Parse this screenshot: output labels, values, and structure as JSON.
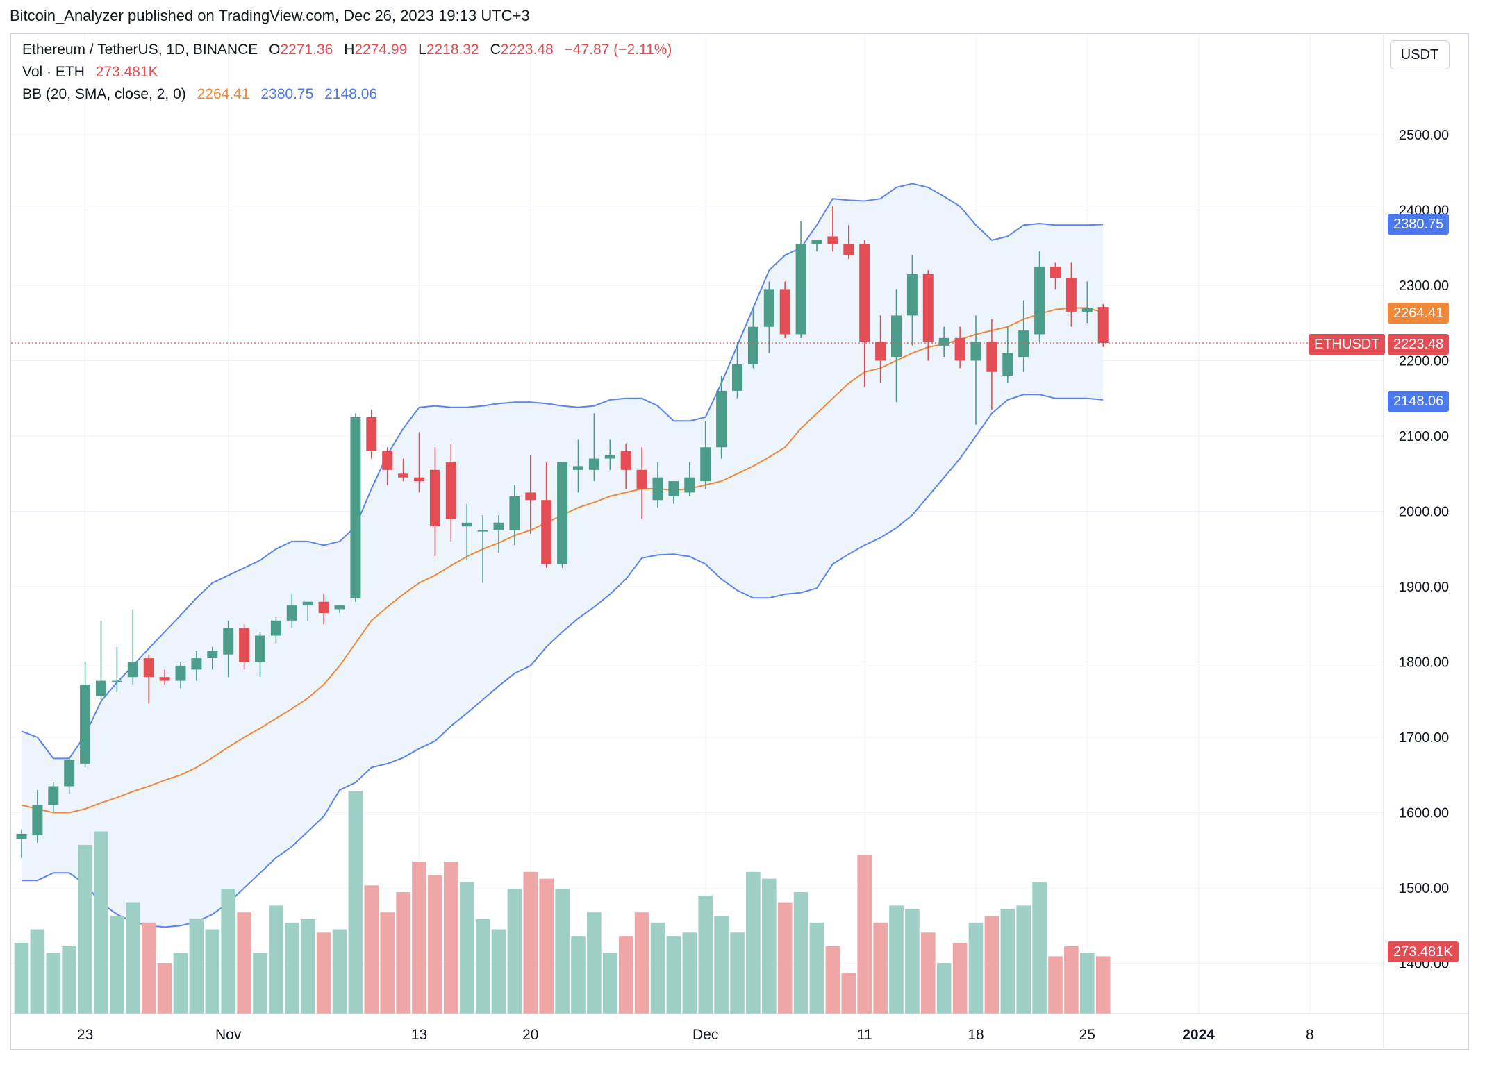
{
  "header": {
    "published": "Bitcoin_Analyzer published on TradingView.com, Dec 26, 2023 19:13 UTC+3"
  },
  "legend": {
    "symbol": "Ethereum / TetherUS, 1D, BINANCE",
    "open_label": "O",
    "open": "2271.36",
    "high_label": "H",
    "high": "2274.99",
    "low_label": "L",
    "low": "2218.32",
    "close_label": "C",
    "close": "2223.48",
    "change": "−47.87 (−2.11%)",
    "vol_label": "Vol · ETH",
    "vol_value": "273.481K",
    "bb_label": "BB (20, SMA, close, 2, 0)",
    "bb_basis": "2264.41",
    "bb_upper": "2380.75",
    "bb_lower": "2148.06"
  },
  "currency": "USDT",
  "price_tags": {
    "upper": "2380.75",
    "basis": "2264.41",
    "symbol": "ETHUSDT",
    "last": "2223.48",
    "lower": "2148.06",
    "volume": "273.481K"
  },
  "colors": {
    "up": "#4c9c8a",
    "down": "#e54d55",
    "vol_up": "#9dcfc4",
    "vol_down": "#efa6a6",
    "band": "#5b84f0",
    "basis": "#f0883a",
    "band_fill": "#eef4fc",
    "grid": "#f0f3fa"
  },
  "chart_data": {
    "type": "candlestick",
    "y_ticks": [
      "2500.00",
      "2400.00",
      "2300.00",
      "2200.00",
      "2100.00",
      "2000.00",
      "1900.00",
      "1800.00",
      "1700.00",
      "1600.00",
      "1500.00",
      "1400.00"
    ],
    "x_ticks": [
      {
        "label": "23",
        "i": 4
      },
      {
        "label": "Nov",
        "i": 13
      },
      {
        "label": "13",
        "i": 25
      },
      {
        "label": "20",
        "i": 32
      },
      {
        "label": "Dec",
        "i": 43
      },
      {
        "label": "11",
        "i": 53
      },
      {
        "label": "18",
        "i": 60
      },
      {
        "label": "25",
        "i": 67
      },
      {
        "label": "2024",
        "i": 74
      },
      {
        "label": "8",
        "i": 81
      }
    ],
    "ylim": [
      1310,
      2585
    ],
    "candles": [
      [
        1565,
        1578,
        1540,
        1572,
        2.1
      ],
      [
        1570,
        1630,
        1560,
        1610,
        2.5
      ],
      [
        1610,
        1640,
        1600,
        1635,
        1.8
      ],
      [
        1635,
        1675,
        1625,
        1670,
        2.0
      ],
      [
        1665,
        1800,
        1660,
        1770,
        5.0
      ],
      [
        1755,
        1855,
        1750,
        1775,
        5.4
      ],
      [
        1775,
        1820,
        1760,
        1775,
        2.9
      ],
      [
        1780,
        1870,
        1770,
        1800,
        3.3
      ],
      [
        1805,
        1810,
        1745,
        1780,
        2.7
      ],
      [
        1780,
        1790,
        1770,
        1775,
        1.5
      ],
      [
        1775,
        1800,
        1765,
        1795,
        1.8
      ],
      [
        1790,
        1815,
        1775,
        1805,
        2.8
      ],
      [
        1805,
        1820,
        1790,
        1815,
        2.5
      ],
      [
        1810,
        1855,
        1780,
        1845,
        3.7
      ],
      [
        1845,
        1850,
        1790,
        1800,
        3.0
      ],
      [
        1800,
        1840,
        1780,
        1835,
        1.8
      ],
      [
        1835,
        1860,
        1825,
        1855,
        3.2
      ],
      [
        1855,
        1890,
        1845,
        1875,
        2.7
      ],
      [
        1875,
        1880,
        1855,
        1880,
        2.8
      ],
      [
        1880,
        1890,
        1850,
        1865,
        2.4
      ],
      [
        1870,
        1875,
        1865,
        1875,
        2.5
      ],
      [
        1885,
        2130,
        1880,
        2125,
        6.6
      ],
      [
        2125,
        2135,
        2070,
        2080,
        3.8
      ],
      [
        2080,
        2085,
        2035,
        2055,
        3.0
      ],
      [
        2050,
        2070,
        2040,
        2045,
        3.6
      ],
      [
        2045,
        2105,
        2025,
        2040,
        4.5
      ],
      [
        2055,
        2085,
        1940,
        1980,
        4.1
      ],
      [
        2065,
        2090,
        1960,
        1990,
        4.5
      ],
      [
        1980,
        2010,
        1935,
        1985,
        3.9
      ],
      [
        1975,
        1995,
        1905,
        1975,
        2.8
      ],
      [
        1975,
        1995,
        1945,
        1985,
        2.5
      ],
      [
        1975,
        2035,
        1955,
        2020,
        3.7
      ],
      [
        2025,
        2075,
        1970,
        2015,
        4.2
      ],
      [
        2015,
        2065,
        1925,
        1930,
        4.0
      ],
      [
        1930,
        2060,
        1925,
        2065,
        3.7
      ],
      [
        2055,
        2095,
        2025,
        2060,
        2.3
      ],
      [
        2055,
        2130,
        2040,
        2070,
        3.0
      ],
      [
        2070,
        2095,
        2055,
        2075,
        1.8
      ],
      [
        2080,
        2090,
        2030,
        2055,
        2.3
      ],
      [
        2055,
        2085,
        1990,
        2030,
        3.0
      ],
      [
        2015,
        2065,
        2005,
        2045,
        2.7
      ],
      [
        2020,
        2040,
        2010,
        2040,
        2.3
      ],
      [
        2025,
        2065,
        2020,
        2045,
        2.4
      ],
      [
        2040,
        2120,
        2030,
        2085,
        3.5
      ],
      [
        2085,
        2180,
        2070,
        2160,
        2.9
      ],
      [
        2160,
        2225,
        2150,
        2195,
        2.4
      ],
      [
        2195,
        2270,
        2190,
        2245,
        4.2
      ],
      [
        2245,
        2305,
        2210,
        2295,
        4.0
      ],
      [
        2295,
        2305,
        2230,
        2235,
        3.3
      ],
      [
        2235,
        2385,
        2230,
        2355,
        3.6
      ],
      [
        2355,
        2360,
        2345,
        2360,
        2.7
      ],
      [
        2365,
        2405,
        2345,
        2355,
        2.0
      ],
      [
        2355,
        2380,
        2335,
        2340,
        1.2
      ],
      [
        2355,
        2360,
        2165,
        2225,
        4.7
      ],
      [
        2225,
        2260,
        2170,
        2200,
        2.7
      ],
      [
        2205,
        2295,
        2145,
        2260,
        3.2
      ],
      [
        2260,
        2340,
        2220,
        2315,
        3.1
      ],
      [
        2315,
        2320,
        2200,
        2225,
        2.4
      ],
      [
        2220,
        2245,
        2205,
        2230,
        1.5
      ],
      [
        2230,
        2245,
        2190,
        2200,
        2.1
      ],
      [
        2200,
        2260,
        2115,
        2225,
        2.7
      ],
      [
        2225,
        2255,
        2135,
        2185,
        2.9
      ],
      [
        2180,
        2245,
        2170,
        2210,
        3.1
      ],
      [
        2205,
        2280,
        2185,
        2240,
        3.2
      ],
      [
        2235,
        2345,
        2225,
        2325,
        3.9
      ],
      [
        2325,
        2330,
        2295,
        2310,
        1.7
      ],
      [
        2310,
        2330,
        2245,
        2265,
        2.0
      ],
      [
        2265,
        2305,
        2250,
        2270,
        1.8
      ],
      [
        2271.36,
        2274.99,
        2218.32,
        2223.48,
        1.7
      ]
    ],
    "bb_upper": [
      1708,
      1700,
      1672,
      1672,
      1703,
      1748,
      1773,
      1795,
      1818,
      1840,
      1862,
      1885,
      1905,
      1915,
      1925,
      1935,
      1950,
      1960,
      1960,
      1955,
      1960,
      1980,
      2030,
      2075,
      2110,
      2138,
      2140,
      2138,
      2138,
      2140,
      2143,
      2145,
      2145,
      2143,
      2140,
      2138,
      2140,
      2148,
      2150,
      2150,
      2140,
      2120,
      2120,
      2125,
      2170,
      2220,
      2270,
      2320,
      2340,
      2350,
      2380,
      2415,
      2413,
      2412,
      2415,
      2430,
      2435,
      2430,
      2418,
      2405,
      2380,
      2360,
      2365,
      2380,
      2382,
      2380,
      2380,
      2380,
      2380.75
    ],
    "bb_basis": [
      1610,
      1605,
      1600,
      1600,
      1605,
      1613,
      1620,
      1628,
      1635,
      1643,
      1650,
      1660,
      1673,
      1687,
      1700,
      1712,
      1725,
      1738,
      1752,
      1770,
      1795,
      1825,
      1855,
      1873,
      1890,
      1905,
      1915,
      1928,
      1940,
      1950,
      1958,
      1968,
      1975,
      1985,
      1995,
      2005,
      2012,
      2020,
      2025,
      2030,
      2030,
      2028,
      2030,
      2035,
      2040,
      2050,
      2060,
      2072,
      2085,
      2110,
      2130,
      2150,
      2170,
      2185,
      2190,
      2200,
      2210,
      2218,
      2222,
      2228,
      2235,
      2240,
      2245,
      2255,
      2262,
      2268,
      2270,
      2270,
      2264.41
    ],
    "bb_lower": [
      1510,
      1510,
      1520,
      1520,
      1505,
      1480,
      1465,
      1455,
      1450,
      1448,
      1450,
      1455,
      1465,
      1480,
      1500,
      1520,
      1540,
      1555,
      1575,
      1595,
      1630,
      1640,
      1660,
      1665,
      1673,
      1685,
      1695,
      1715,
      1732,
      1750,
      1768,
      1785,
      1795,
      1820,
      1840,
      1858,
      1873,
      1890,
      1910,
      1938,
      1942,
      1943,
      1940,
      1930,
      1910,
      1895,
      1885,
      1885,
      1890,
      1892,
      1898,
      1930,
      1943,
      1955,
      1965,
      1978,
      1995,
      2020,
      2045,
      2070,
      2100,
      2130,
      2148,
      2155,
      2155,
      2150,
      2150,
      2150,
      2148.06
    ],
    "volume_scale": [
      0,
      7.2
    ]
  }
}
